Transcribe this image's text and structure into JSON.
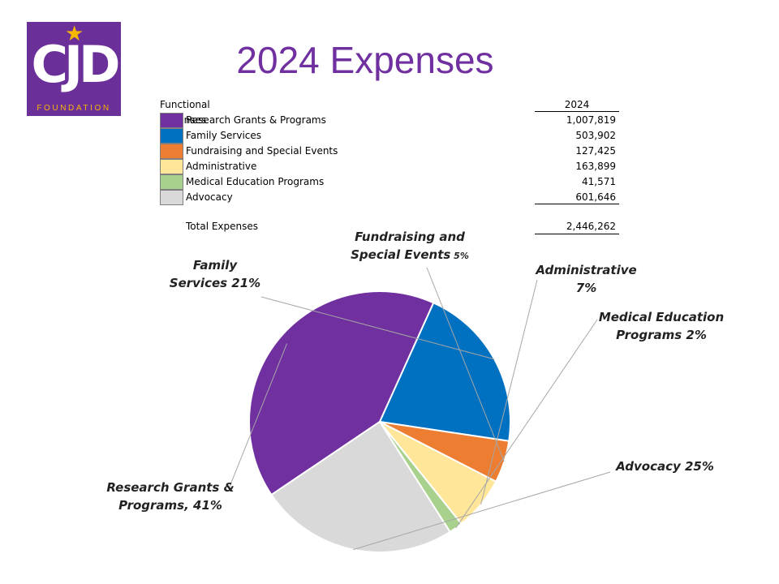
{
  "logo": {
    "letters": "CJD",
    "subtitle": "FOUNDATION"
  },
  "title": "2024 Expenses",
  "table": {
    "header_label": "Functional Expenses",
    "header_year": "2024",
    "total_label": "Total Expenses",
    "total_value": "2,446,262"
  },
  "chart_data": {
    "type": "pie",
    "title": "2024 Expenses",
    "unit": "USD",
    "slices": [
      {
        "label": "Research Grants & Programs",
        "value": 1007819,
        "display": "1,007,819",
        "percent": 41,
        "color": "#7030a0",
        "callout": [
          "Research Grants &",
          "Programs, 41%"
        ]
      },
      {
        "label": "Family Services",
        "value": 503902,
        "display": "503,902",
        "percent": 21,
        "color": "#0070c0",
        "callout": [
          "Family",
          "Services 21%"
        ]
      },
      {
        "label": "Fundraising and Special Events",
        "value": 127425,
        "display": "127,425",
        "percent": 5,
        "color": "#ed7d31",
        "callout": [
          "Fundraising and",
          "Special Events"
        ],
        "callout_pct": "5%"
      },
      {
        "label": "Administrative",
        "value": 163899,
        "display": "163,899",
        "percent": 7,
        "color": "#ffe699",
        "callout": [
          "Administrative",
          "7%"
        ]
      },
      {
        "label": "Medical Education Programs",
        "value": 41571,
        "display": "41,571",
        "percent": 2,
        "color": "#a9d18e",
        "callout": [
          "Medical Education",
          "Programs 2%"
        ]
      },
      {
        "label": "Advocacy",
        "value": 601646,
        "display": "601,646",
        "percent": 25,
        "color": "#d9d9d9",
        "callout": [
          "Advocacy 25%"
        ]
      }
    ]
  }
}
